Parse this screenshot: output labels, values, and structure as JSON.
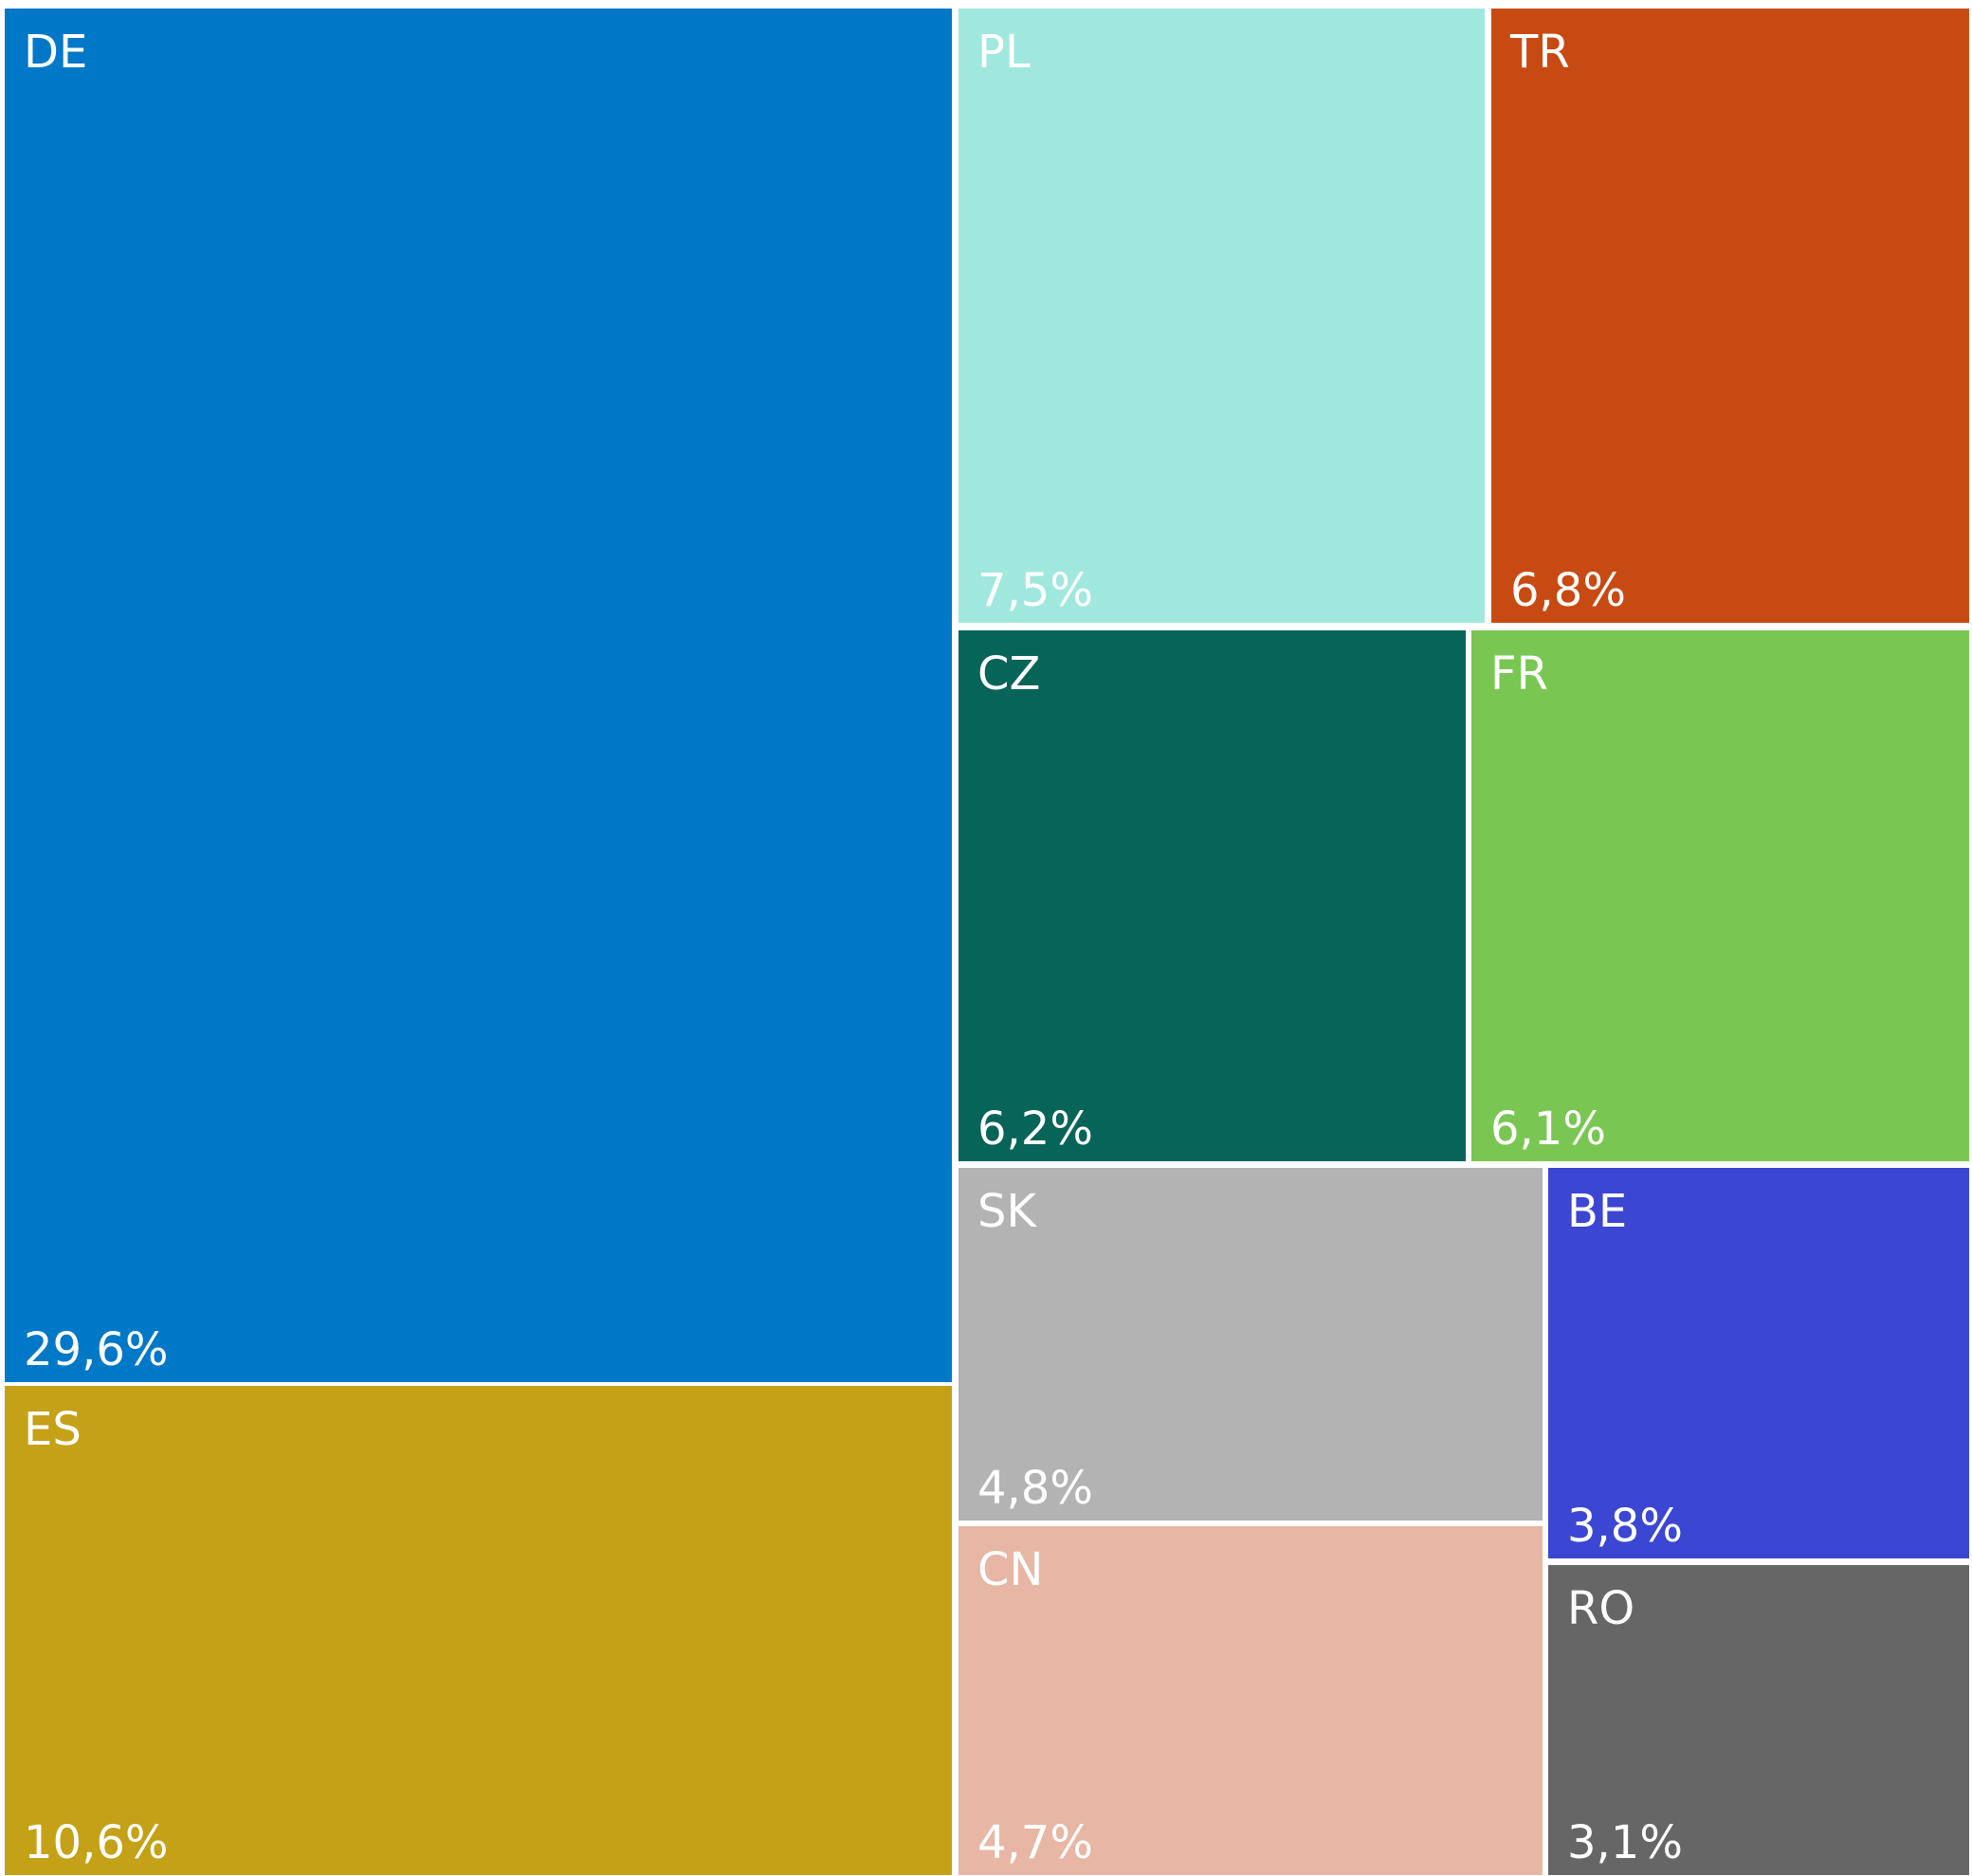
{
  "chart_data": {
    "type": "treemap",
    "title": "",
    "series": [
      {
        "items": [
          {
            "label": "DE",
            "value": 29.6,
            "value_text": "29,6%",
            "color": "#0078C8"
          },
          {
            "label": "ES",
            "value": 10.6,
            "value_text": "10,6%",
            "color": "#C4A116"
          },
          {
            "label": "PL",
            "value": 7.5,
            "value_text": "7,5%",
            "color": "#A0E8DE"
          },
          {
            "label": "TR",
            "value": 6.8,
            "value_text": "6,8%",
            "color": "#C84A13"
          },
          {
            "label": "CZ",
            "value": 6.2,
            "value_text": "6,2%",
            "color": "#066458"
          },
          {
            "label": "FR",
            "value": 6.1,
            "value_text": "6,1%",
            "color": "#7AC653"
          },
          {
            "label": "SK",
            "value": 4.8,
            "value_text": "4,8%",
            "color": "#B3B3B3"
          },
          {
            "label": "CN",
            "value": 4.7,
            "value_text": "4,7%",
            "color": "#E8B6A4"
          },
          {
            "label": "BE",
            "value": 3.8,
            "value_text": "3,8%",
            "color": "#3B46D3"
          },
          {
            "label": "RO",
            "value": 3.1,
            "value_text": "3,1%",
            "color": "#666666"
          }
        ]
      }
    ]
  }
}
